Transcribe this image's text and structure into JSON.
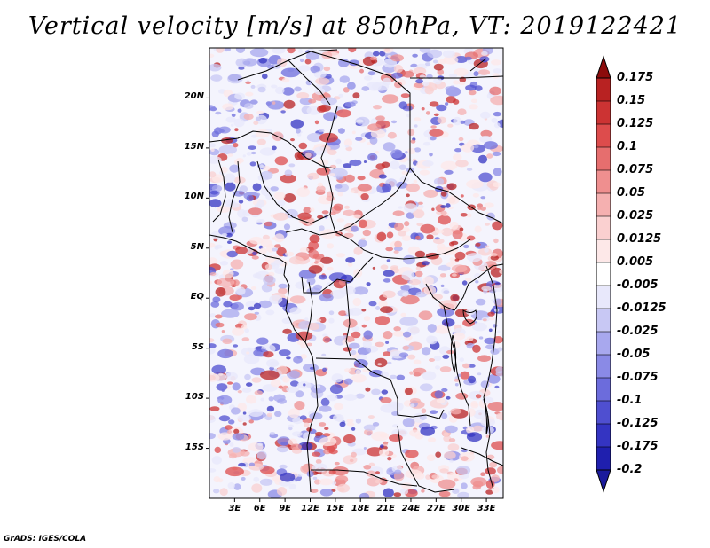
{
  "title": "Vertical velocity [m/s] at 850hPa, VT: 2019122421",
  "credit": "GrADS: IGES/COLA",
  "map": {
    "lon_range": [
      0,
      35
    ],
    "lat_range": [
      -20,
      25
    ],
    "lat_ticks": [
      {
        "value": 20,
        "label": "20N"
      },
      {
        "value": 15,
        "label": "15N"
      },
      {
        "value": 10,
        "label": "10N"
      },
      {
        "value": 5,
        "label": "5N"
      },
      {
        "value": 0,
        "label": "EQ"
      },
      {
        "value": -5,
        "label": "5S"
      },
      {
        "value": -10,
        "label": "10S"
      },
      {
        "value": -15,
        "label": "15S"
      }
    ],
    "lon_ticks": [
      {
        "value": 3,
        "label": "3E"
      },
      {
        "value": 6,
        "label": "6E"
      },
      {
        "value": 9,
        "label": "9E"
      },
      {
        "value": 12,
        "label": "12E"
      },
      {
        "value": 15,
        "label": "15E"
      },
      {
        "value": 18,
        "label": "18E"
      },
      {
        "value": 21,
        "label": "21E"
      },
      {
        "value": 24,
        "label": "24E"
      },
      {
        "value": 27,
        "label": "27E"
      },
      {
        "value": 30,
        "label": "30E"
      },
      {
        "value": 33,
        "label": "33E"
      }
    ]
  },
  "colorbar": {
    "levels": [
      {
        "label": "0.175",
        "color": "#a01010"
      },
      {
        "label": "0.15",
        "color": "#b82222"
      },
      {
        "label": "0.125",
        "color": "#cc3333"
      },
      {
        "label": "0.1",
        "color": "#dd4c4c"
      },
      {
        "label": "0.075",
        "color": "#e66e6e"
      },
      {
        "label": "0.05",
        "color": "#ef8f8f"
      },
      {
        "label": "0.025",
        "color": "#f5b0b0"
      },
      {
        "label": "0.0125",
        "color": "#fad0d0"
      },
      {
        "label": "0.005",
        "color": "#fde8e8"
      },
      {
        "label": "-0.005",
        "color": "#ffffff"
      },
      {
        "label": "-0.0125",
        "color": "#e8e8fb"
      },
      {
        "label": "-0.025",
        "color": "#c8c8f4"
      },
      {
        "label": "-0.05",
        "color": "#a8a8ee"
      },
      {
        "label": "-0.075",
        "color": "#8a8ae6"
      },
      {
        "label": "-0.1",
        "color": "#6c6cdc"
      },
      {
        "label": "-0.125",
        "color": "#4f4fd0"
      },
      {
        "label": "-0.175",
        "color": "#3434c2"
      },
      {
        "label": "-0.2",
        "color": "#1f1fae"
      }
    ],
    "over_color": "#8c0c0c",
    "under_color": "#1a1a9c"
  }
}
